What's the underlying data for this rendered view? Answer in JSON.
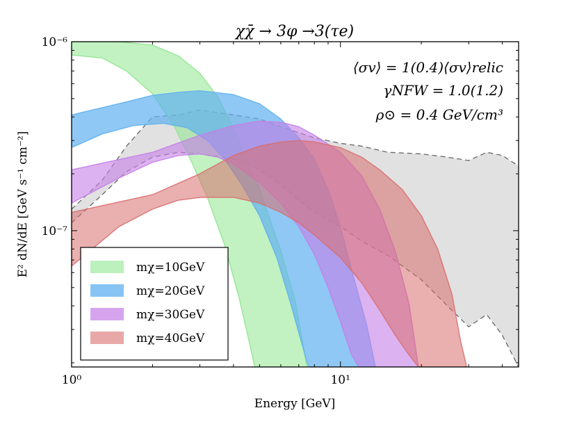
{
  "chart_data": {
    "type": "area",
    "title": "χχ̄ → 3φ →3(τe)",
    "xlabel": "Energy [GeV]",
    "ylabel": "E² dN/dE [GeV s⁻¹ cm⁻²]",
    "xscale": "log",
    "yscale": "log",
    "xlim": [
      1.0,
      46.0
    ],
    "ylim": [
      1.9e-08,
      1e-06
    ],
    "x_tick_labels": [
      {
        "value": 1,
        "label": "10⁰"
      },
      {
        "value": 10,
        "label": "10¹"
      }
    ],
    "y_tick_labels": [
      {
        "value": 1e-06,
        "label": "10⁻⁶"
      },
      {
        "value": 1e-07,
        "label": "10⁻⁷"
      }
    ],
    "annotations": [
      "⟨σv⟩ = 1(0.4)⟨σv⟩relic",
      "γNFW = 1.0(1.2)",
      "ρ⊙ = 0.4 GeV/cm³"
    ],
    "legend_position": "lower-left",
    "series": [
      {
        "name": "mχ=10GeV",
        "color": "#8fe68f",
        "upper": [
          [
            1.0,
            1e-06
          ],
          [
            1.5,
            1e-06
          ],
          [
            2.0,
            9.6e-07
          ],
          [
            2.5,
            8.4e-07
          ],
          [
            3.0,
            6.8e-07
          ],
          [
            3.5,
            5.1e-07
          ],
          [
            4.0,
            3.5e-07
          ],
          [
            5.0,
            1.65e-07
          ],
          [
            6.0,
            7.8e-08
          ],
          [
            6.8,
            4.2e-08
          ],
          [
            7.5,
            1.9e-08
          ]
        ],
        "lower": [
          [
            1.0,
            8.5e-07
          ],
          [
            1.3,
            8.2e-07
          ],
          [
            1.6,
            7e-07
          ],
          [
            2.0,
            5.3e-07
          ],
          [
            2.4,
            3.6e-07
          ],
          [
            2.8,
            2.3e-07
          ],
          [
            3.2,
            1.5e-07
          ],
          [
            3.7,
            8.5e-08
          ],
          [
            4.2,
            4.4e-08
          ],
          [
            4.6,
            2.5e-08
          ],
          [
            4.8,
            1.9e-08
          ]
        ]
      },
      {
        "name": "mχ=20GeV",
        "color": "#5fb0f0",
        "upper": [
          [
            1.0,
            4.1e-07
          ],
          [
            1.5,
            4.7e-07
          ],
          [
            2.0,
            5.2e-07
          ],
          [
            2.5,
            5.4e-07
          ],
          [
            3.0,
            5.5e-07
          ],
          [
            4.0,
            5.25e-07
          ],
          [
            5.0,
            4.7e-07
          ],
          [
            6.0,
            3.9e-07
          ],
          [
            7.0,
            3.1e-07
          ],
          [
            8.0,
            2.4e-07
          ],
          [
            9.0,
            1.65e-07
          ],
          [
            10.0,
            1.05e-07
          ],
          [
            11.0,
            6.2e-08
          ],
          [
            12.5,
            3.2e-08
          ],
          [
            13.5,
            1.9e-08
          ]
        ],
        "lower": [
          [
            1.0,
            2.75e-07
          ],
          [
            1.3,
            3.25e-07
          ],
          [
            1.7,
            3.6e-07
          ],
          [
            2.2,
            3.7e-07
          ],
          [
            2.7,
            3.5e-07
          ],
          [
            3.2,
            3e-07
          ],
          [
            3.7,
            2.4e-07
          ],
          [
            4.3,
            1.75e-07
          ],
          [
            5.0,
            1.2e-07
          ],
          [
            5.8,
            7.2e-08
          ],
          [
            6.5,
            4.2e-08
          ],
          [
            7.2,
            2.5e-08
          ],
          [
            7.6,
            1.9e-08
          ]
        ]
      },
      {
        "name": "mχ=30GeV",
        "color": "#c57ee8",
        "upper": [
          [
            1.0,
            2.1e-07
          ],
          [
            2.0,
            2.6e-07
          ],
          [
            3.0,
            3.2e-07
          ],
          [
            4.0,
            3.6e-07
          ],
          [
            5.0,
            3.8e-07
          ],
          [
            6.0,
            3.75e-07
          ],
          [
            7.0,
            3.55e-07
          ],
          [
            8.0,
            3.2e-07
          ],
          [
            10.0,
            2.6e-07
          ],
          [
            12.0,
            1.95e-07
          ],
          [
            14.0,
            1.3e-07
          ],
          [
            16.0,
            7.8e-08
          ],
          [
            18.0,
            4.1e-08
          ],
          [
            19.5,
            1.9e-08
          ]
        ],
        "lower": [
          [
            1.0,
            1.4e-07
          ],
          [
            1.5,
            1.9e-07
          ],
          [
            2.0,
            2.3e-07
          ],
          [
            2.5,
            2.5e-07
          ],
          [
            3.0,
            2.55e-07
          ],
          [
            3.5,
            2.45e-07
          ],
          [
            4.0,
            2.25e-07
          ],
          [
            5.0,
            1.8e-07
          ],
          [
            6.0,
            1.4e-07
          ],
          [
            7.0,
            1.05e-07
          ],
          [
            8.0,
            7.5e-08
          ],
          [
            9.0,
            5e-08
          ],
          [
            10.0,
            3.3e-08
          ],
          [
            11.0,
            2.2e-08
          ],
          [
            11.7,
            1.9e-08
          ]
        ]
      },
      {
        "name": "mχ=40GeV",
        "color": "#d96e6e",
        "upper": [
          [
            1.0,
            1.25e-07
          ],
          [
            2.0,
            1.55e-07
          ],
          [
            3.0,
            2e-07
          ],
          [
            4.0,
            2.5e-07
          ],
          [
            5.0,
            2.8e-07
          ],
          [
            6.0,
            2.95e-07
          ],
          [
            7.0,
            3e-07
          ],
          [
            8.0,
            2.95e-07
          ],
          [
            10.0,
            2.75e-07
          ],
          [
            12.0,
            2.45e-07
          ],
          [
            14.0,
            2.1e-07
          ],
          [
            17.0,
            1.65e-07
          ],
          [
            20.0,
            1.2e-07
          ],
          [
            23.0,
            8e-08
          ],
          [
            26.0,
            4.6e-08
          ],
          [
            28.0,
            2.6e-08
          ],
          [
            29.5,
            1.9e-08
          ]
        ],
        "lower": [
          [
            1.0,
            6.5e-08
          ],
          [
            1.5,
            1.05e-07
          ],
          [
            2.0,
            1.3e-07
          ],
          [
            2.5,
            1.45e-07
          ],
          [
            3.0,
            1.5e-07
          ],
          [
            4.0,
            1.5e-07
          ],
          [
            5.0,
            1.4e-07
          ],
          [
            6.0,
            1.25e-07
          ],
          [
            7.0,
            1.1e-07
          ],
          [
            8.0,
            9.5e-08
          ],
          [
            10.0,
            7.2e-08
          ],
          [
            12.0,
            5.3e-08
          ],
          [
            14.0,
            3.8e-08
          ],
          [
            16.0,
            2.8e-08
          ],
          [
            18.0,
            2.2e-08
          ],
          [
            19.5,
            1.9e-08
          ]
        ]
      }
    ],
    "background_band": {
      "name": "data envelope",
      "color": "#dcdcdc",
      "upper": [
        [
          1.0,
          1.3e-07
        ],
        [
          1.3,
          1.85e-07
        ],
        [
          1.6,
          2.8e-07
        ],
        [
          2.0,
          4e-07
        ],
        [
          2.5,
          4.1e-07
        ],
        [
          3.0,
          4.35e-07
        ],
        [
          4.0,
          4.1e-07
        ],
        [
          5.0,
          3.9e-07
        ],
        [
          6.0,
          3.55e-07
        ],
        [
          7.0,
          3.3e-07
        ],
        [
          8.0,
          3.1e-07
        ],
        [
          10.0,
          2.9e-07
        ],
        [
          12.0,
          2.8e-07
        ],
        [
          15.0,
          2.6e-07
        ],
        [
          20.0,
          2.55e-07
        ],
        [
          25.0,
          2.45e-07
        ],
        [
          30.0,
          2.35e-07
        ],
        [
          35.0,
          2.6e-07
        ],
        [
          40.0,
          2.5e-07
        ],
        [
          46.0,
          2.2e-07
        ]
      ],
      "lower": [
        [
          1.0,
          1.1e-07
        ],
        [
          1.3,
          1.55e-07
        ],
        [
          1.6,
          2.05e-07
        ],
        [
          2.0,
          2.45e-07
        ],
        [
          2.5,
          2.6e-07
        ],
        [
          3.0,
          2.55e-07
        ],
        [
          4.0,
          2.4e-07
        ],
        [
          5.0,
          2.1e-07
        ],
        [
          6.0,
          1.75e-07
        ],
        [
          7.0,
          1.45e-07
        ],
        [
          8.0,
          1.25e-07
        ],
        [
          10.0,
          1.05e-07
        ],
        [
          12.0,
          8.8e-08
        ],
        [
          15.0,
          7.4e-08
        ],
        [
          20.0,
          5.5e-08
        ],
        [
          25.0,
          4e-08
        ],
        [
          30.0,
          3.1e-08
        ],
        [
          35.0,
          3.6e-08
        ],
        [
          40.0,
          2.8e-08
        ],
        [
          46.0,
          1.9e-08
        ]
      ]
    }
  }
}
